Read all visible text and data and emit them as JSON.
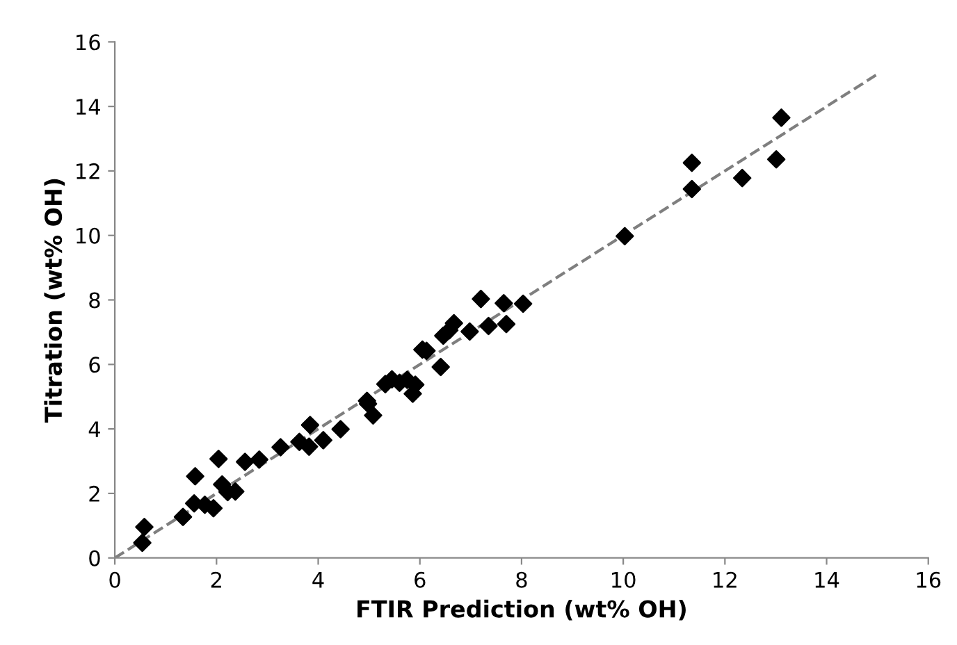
{
  "chart_data": {
    "type": "scatter",
    "xlabel": "FTIR Prediction (wt% OH)",
    "ylabel": "Titration (wt% OH)",
    "xlim": [
      0,
      16
    ],
    "ylim": [
      0,
      16
    ],
    "xticks": [
      0,
      2,
      4,
      6,
      8,
      10,
      12,
      14,
      16
    ],
    "yticks": [
      0,
      2,
      4,
      6,
      8,
      10,
      12,
      14,
      16
    ],
    "grid": false,
    "legend": false,
    "marker": "diamond",
    "series": [
      {
        "color": "#000000",
        "x": [
          0.54,
          0.58,
          1.34,
          1.56,
          1.58,
          1.77,
          1.94,
          2.04,
          2.11,
          2.22,
          2.37,
          2.56,
          2.84,
          3.26,
          3.63,
          3.82,
          3.84,
          4.1,
          4.44,
          4.96,
          4.98,
          5.08,
          5.32,
          5.45,
          5.6,
          5.75,
          5.91,
          5.86,
          6.05,
          6.13,
          6.41,
          6.46,
          6.58,
          6.67,
          6.98,
          7.2,
          7.35,
          7.65,
          7.7,
          8.03,
          10.03,
          11.35,
          11.35,
          12.34,
          13.01,
          13.11
        ],
        "values": [
          0.47,
          0.96,
          1.27,
          1.69,
          2.53,
          1.65,
          1.54,
          3.07,
          2.28,
          2.04,
          2.06,
          2.98,
          3.05,
          3.43,
          3.6,
          3.45,
          4.12,
          3.65,
          3.99,
          4.87,
          4.78,
          4.42,
          5.39,
          5.54,
          5.43,
          5.52,
          5.37,
          5.09,
          6.46,
          6.42,
          5.92,
          6.89,
          7.06,
          7.28,
          7.02,
          8.03,
          7.19,
          7.9,
          7.25,
          7.88,
          9.98,
          12.25,
          11.44,
          11.78,
          12.36,
          13.65
        ]
      },
      {
        "type": "line",
        "color": "#7f7f7f",
        "line_style": "dashed",
        "marker": "none",
        "x": [
          0,
          15
        ],
        "values": [
          0,
          15
        ]
      }
    ]
  }
}
